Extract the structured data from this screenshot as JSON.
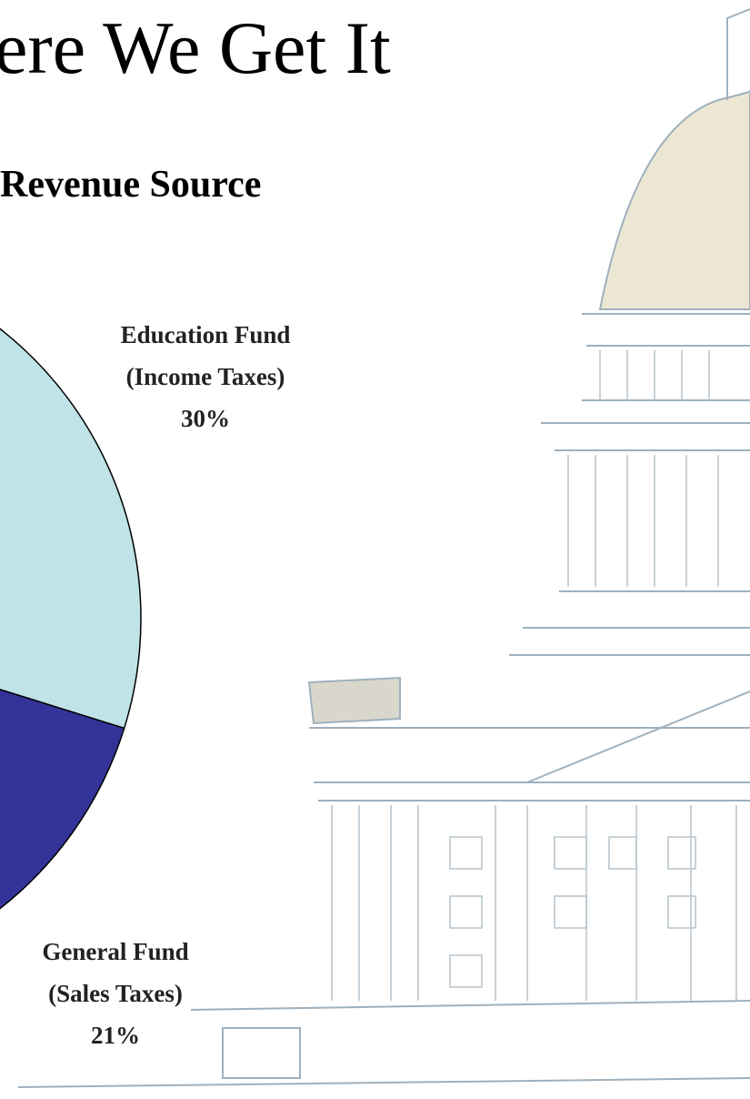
{
  "chart_data": {
    "type": "pie",
    "title": "ere We Get It",
    "subtitle": "Revenue Source",
    "labels": [
      [
        "Education Fund",
        "(Income Taxes)"
      ],
      [
        "General Fund",
        "(Sales Taxes)"
      ]
    ],
    "values": [
      30,
      21
    ],
    "value_labels": [
      "30%",
      "21%"
    ],
    "colors": [
      "#bfe3e6",
      "#333399"
    ]
  }
}
